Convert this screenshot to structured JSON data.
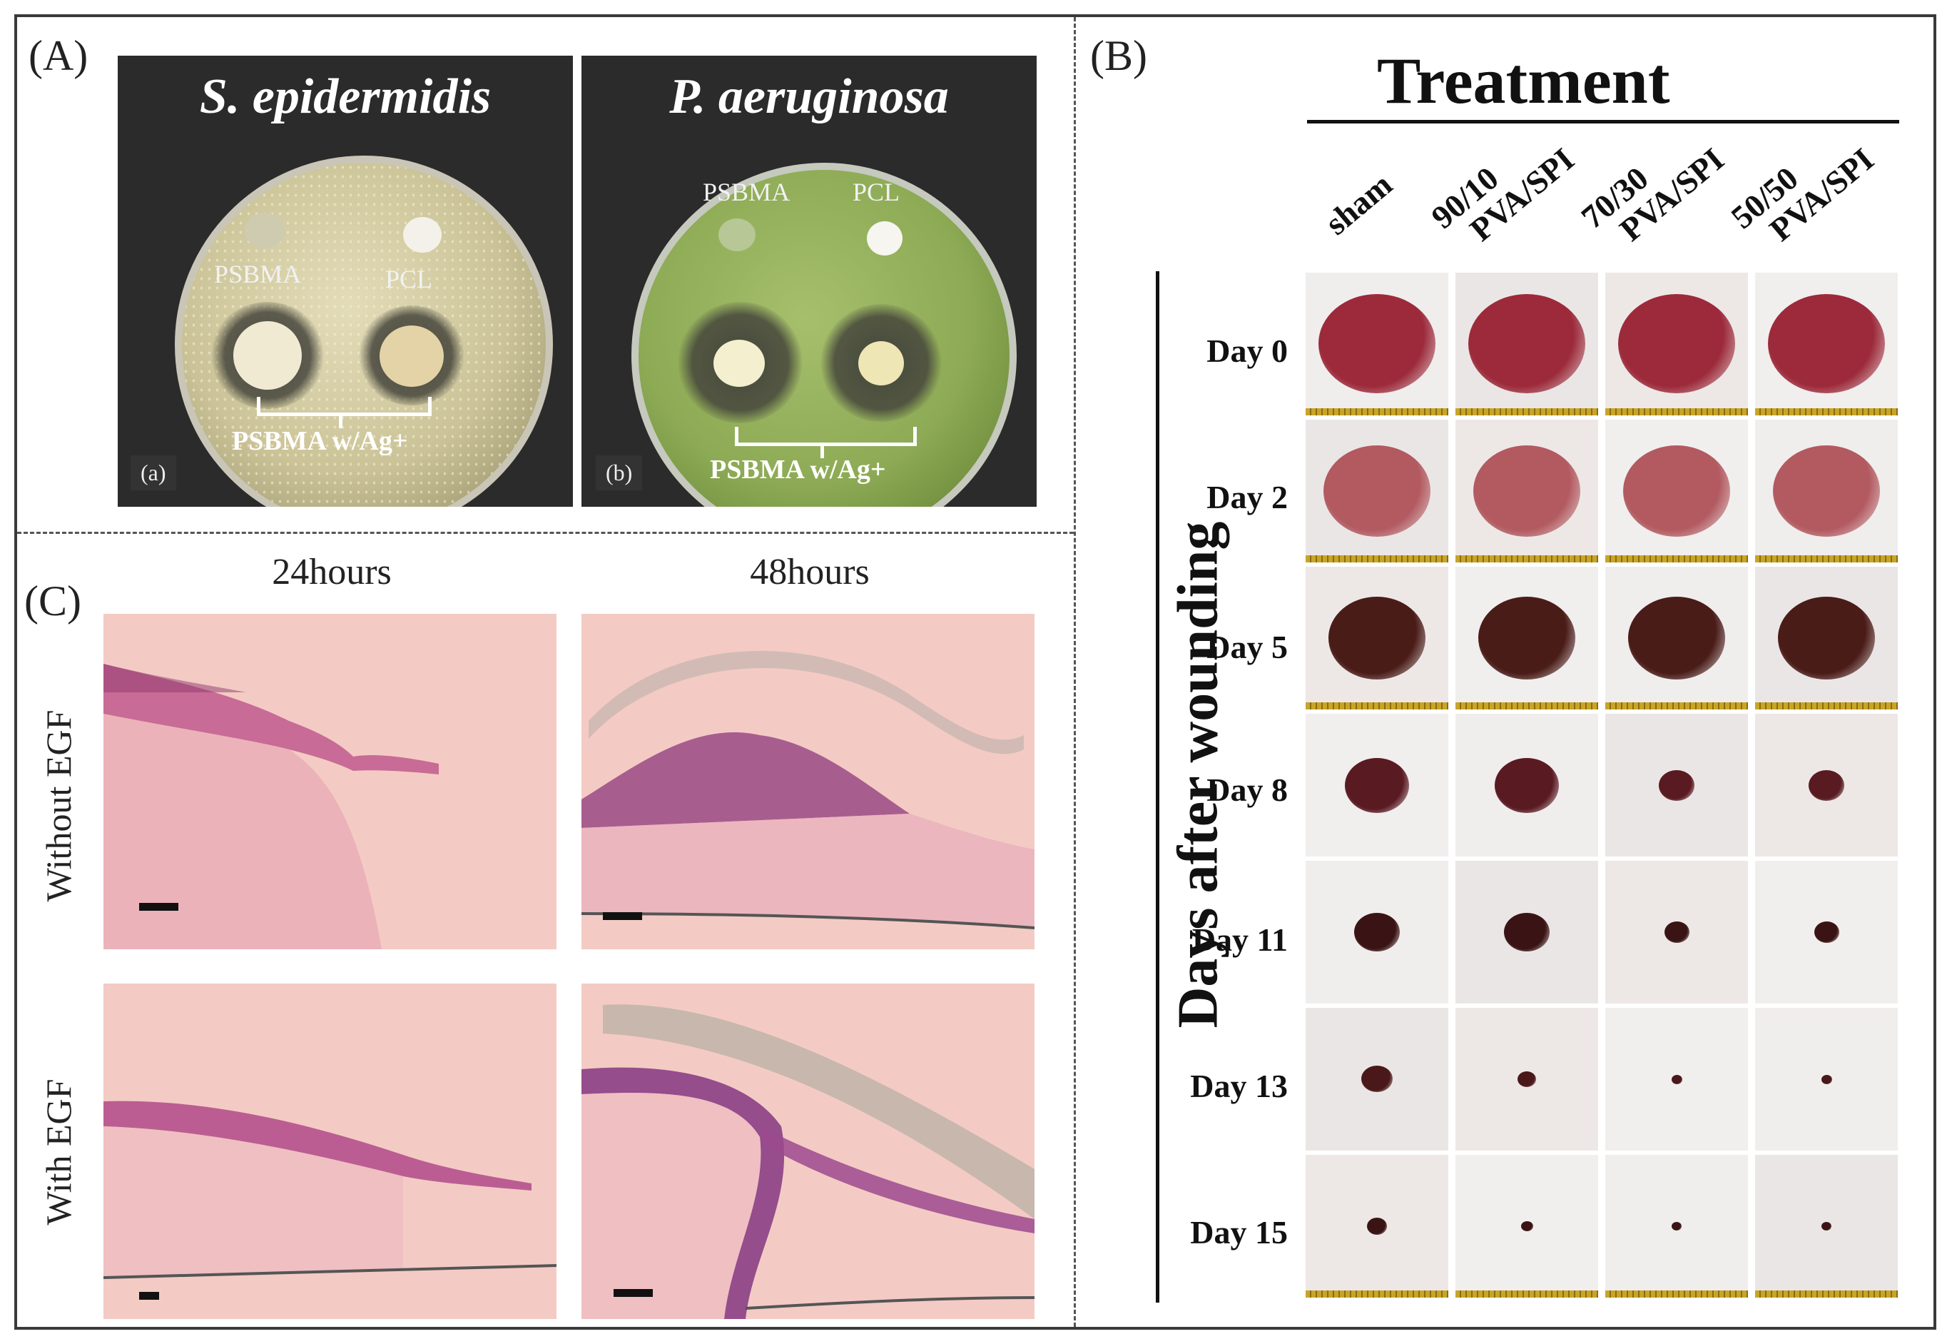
{
  "panels": {
    "A": {
      "letter": "(A)",
      "plate_a": {
        "title": "S. epidermidis",
        "label_1": "PSBMA",
        "label_2": "PCL",
        "group": "PSBMA w/Ag+",
        "tag": "(a)"
      },
      "plate_b": {
        "title": "P. aeruginosa",
        "label_1": "PSBMA",
        "label_2": "PCL",
        "group": "PSBMA w/Ag+",
        "tag": "(b)"
      }
    },
    "B": {
      "letter": "(B)",
      "title": "Treatment",
      "columns": [
        {
          "line1": "sham",
          "line2": ""
        },
        {
          "line1": "90/10",
          "line2": "PVA/SPI"
        },
        {
          "line1": "70/30",
          "line2": "PVA/SPI"
        },
        {
          "line1": "50/50",
          "line2": "PVA/SPI"
        }
      ],
      "axis_label": "Days after wounding",
      "rows": [
        "Day 0",
        "Day 2",
        "Day 5",
        "Day 8",
        "Day 11",
        "Day 13",
        "Day 15"
      ]
    },
    "C": {
      "letter": "(C)",
      "col_1": "24hours",
      "col_2": "48hours",
      "row_1": "Without EGF",
      "row_2": "With EGF"
    }
  },
  "colors": {
    "frame": "#3a3a3a",
    "histo_bg": "#f2c6c0",
    "tissue": "#b9528a",
    "skin": "#ece6e6"
  }
}
